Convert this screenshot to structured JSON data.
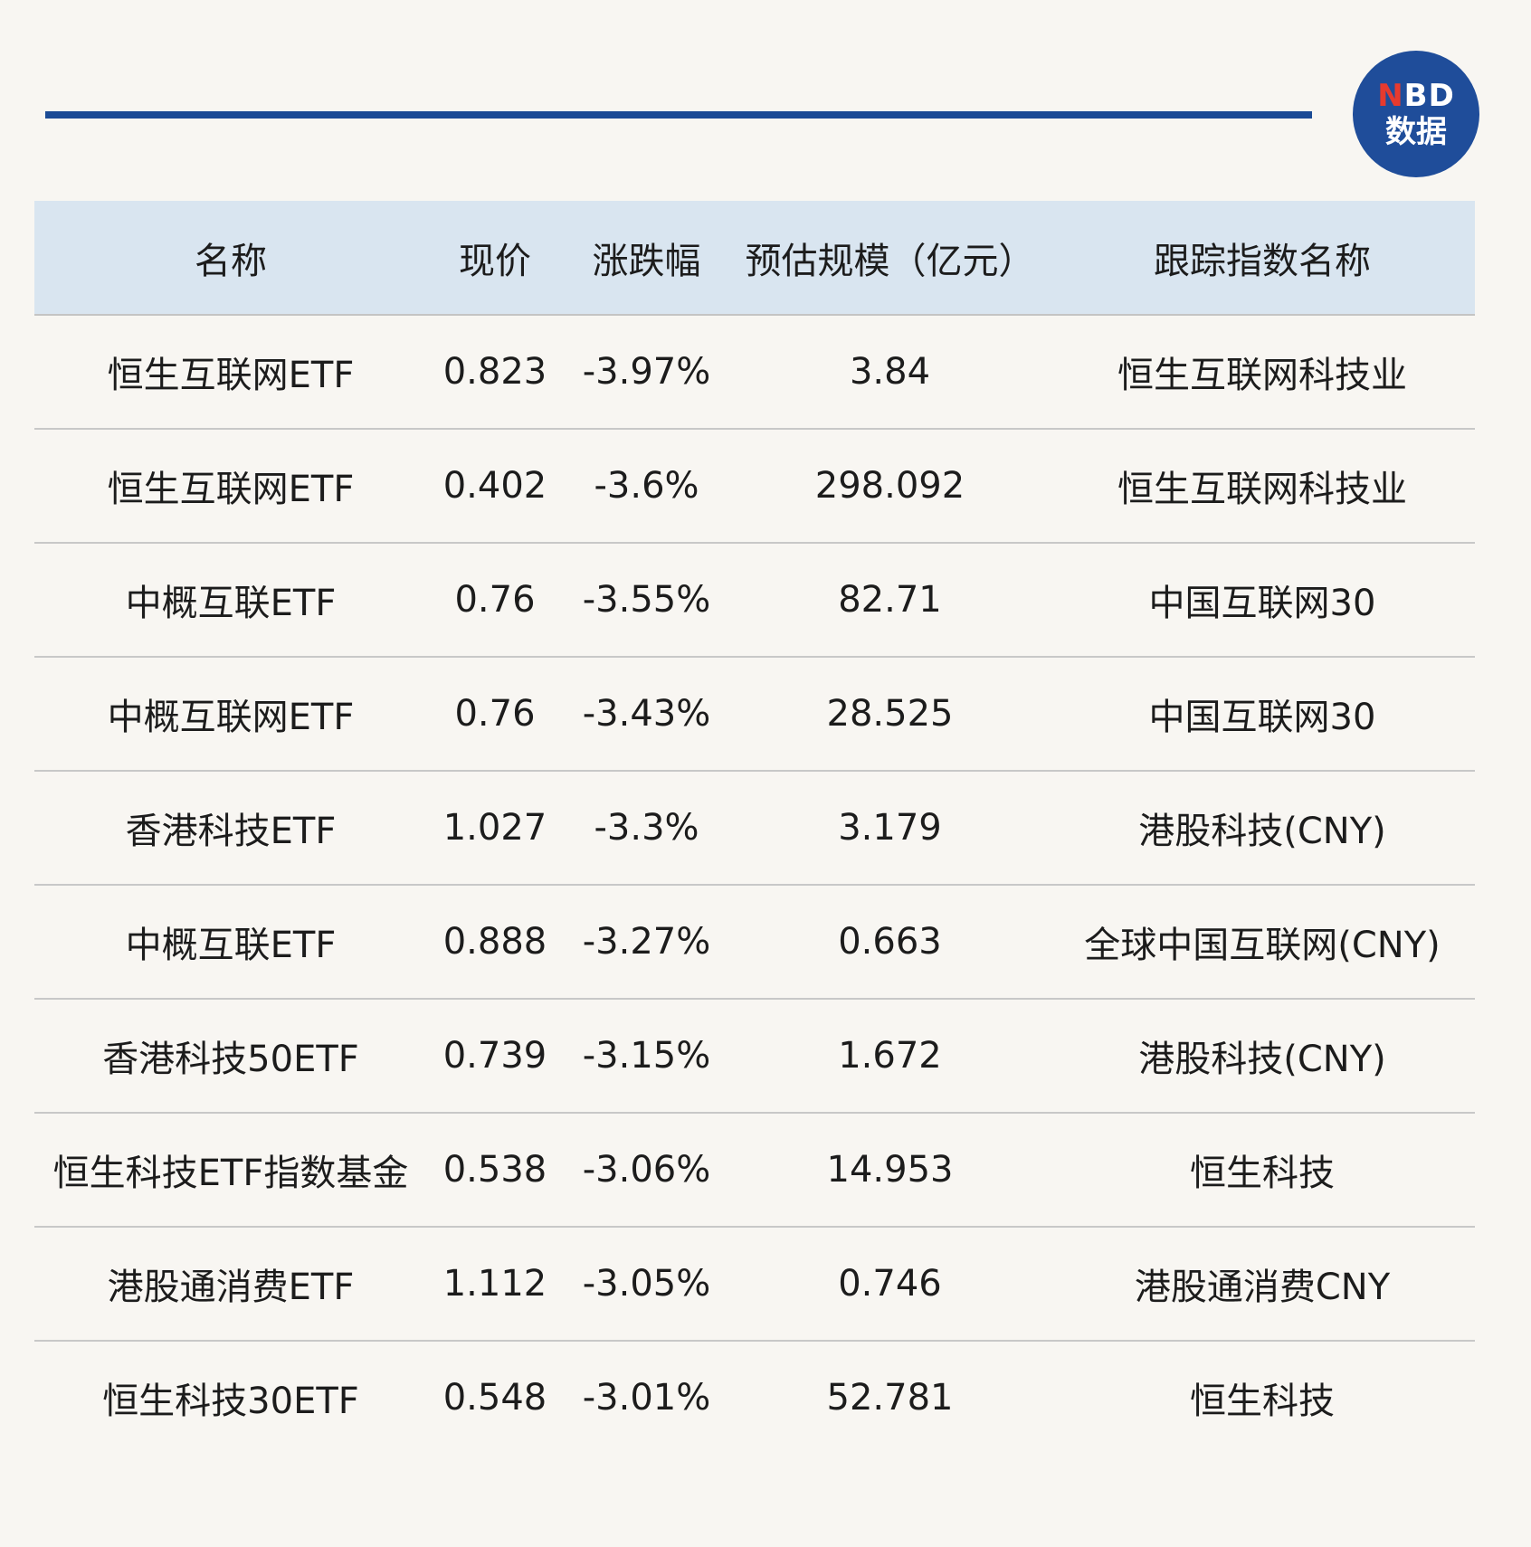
{
  "logo": {
    "line1_n": "N",
    "line1_rest": "BD",
    "line2": "数据"
  },
  "table": {
    "headers": [
      "名称",
      "现价",
      "涨跌幅",
      "预估规模（亿元）",
      "跟踪指数名称"
    ],
    "rows": [
      [
        "恒生互联网ETF",
        "0.823",
        "-3.97%",
        "3.84",
        "恒生互联网科技业"
      ],
      [
        "恒生互联网ETF",
        "0.402",
        "-3.6%",
        "298.092",
        "恒生互联网科技业"
      ],
      [
        "中概互联ETF",
        "0.76",
        "-3.55%",
        "82.71",
        "中国互联网30"
      ],
      [
        "中概互联网ETF",
        "0.76",
        "-3.43%",
        "28.525",
        "中国互联网30"
      ],
      [
        "香港科技ETF",
        "1.027",
        "-3.3%",
        "3.179",
        "港股科技(CNY)"
      ],
      [
        "中概互联ETF",
        "0.888",
        "-3.27%",
        "0.663",
        "全球中国互联网(CNY)"
      ],
      [
        "香港科技50ETF",
        "0.739",
        "-3.15%",
        "1.672",
        "港股科技(CNY)"
      ],
      [
        "恒生科技ETF指数基金",
        "0.538",
        "-3.06%",
        "14.953",
        "恒生科技"
      ],
      [
        "港股通消费ETF",
        "1.112",
        "-3.05%",
        "0.746",
        "港股通消费CNY"
      ],
      [
        "恒生科技30ETF",
        "0.548",
        "-3.01%",
        "52.781",
        "恒生科技"
      ]
    ]
  }
}
